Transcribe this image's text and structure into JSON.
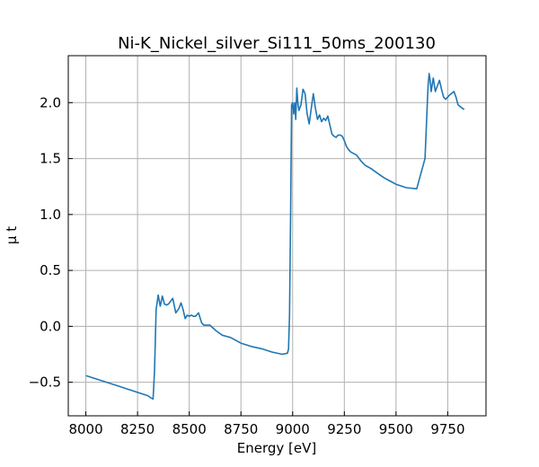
{
  "chart_data": {
    "type": "line",
    "title": "Ni-K_Nickel_silver_Si111_50ms_200130",
    "xlabel": "Energy [eV]",
    "ylabel": "μ t",
    "xlim": [
      7915,
      9935
    ],
    "ylim": [
      -0.8,
      2.42
    ],
    "grid": true,
    "legend": "none",
    "xticks": [
      8000,
      8250,
      8500,
      8750,
      9000,
      9250,
      9500,
      9750
    ],
    "xtick_labels": [
      "8000",
      "8250",
      "8500",
      "8750",
      "9000",
      "9250",
      "9500",
      "9750"
    ],
    "yticks": [
      -0.5,
      0.0,
      0.5,
      1.0,
      1.5,
      2.0
    ],
    "ytick_labels": [
      "−0.5",
      "0.0",
      "0.5",
      "1.0",
      "1.5",
      "2.0"
    ],
    "series": [
      {
        "color": "#1f77b4",
        "x": [
          8000,
          8100,
          8200,
          8300,
          8315,
          8325,
          8332,
          8340,
          8350,
          8360,
          8370,
          8380,
          8390,
          8400,
          8420,
          8435,
          8450,
          8460,
          8470,
          8480,
          8490,
          8500,
          8510,
          8520,
          8530,
          8545,
          8560,
          8570,
          8580,
          8600,
          8630,
          8660,
          8700,
          8750,
          8800,
          8850,
          8900,
          8950,
          8975,
          8980,
          8985,
          8990,
          8995,
          9000,
          9005,
          9010,
          9015,
          9020,
          9025,
          9030,
          9040,
          9050,
          9060,
          9070,
          9080,
          9090,
          9100,
          9110,
          9120,
          9130,
          9140,
          9150,
          9160,
          9170,
          9180,
          9190,
          9200,
          9210,
          9220,
          9230,
          9240,
          9250,
          9260,
          9270,
          9280,
          9290,
          9310,
          9330,
          9350,
          9380,
          9410,
          9440,
          9470,
          9500,
          9550,
          9600,
          9640,
          9655,
          9660,
          9665,
          9670,
          9680,
          9690,
          9700,
          9710,
          9720,
          9730,
          9740,
          9760,
          9780,
          9790,
          9800,
          9820,
          9830
        ],
        "values": [
          -0.44,
          -0.5,
          -0.56,
          -0.62,
          -0.64,
          -0.65,
          -0.4,
          0.15,
          0.28,
          0.18,
          0.27,
          0.2,
          0.19,
          0.2,
          0.25,
          0.12,
          0.16,
          0.21,
          0.15,
          0.07,
          0.1,
          0.09,
          0.1,
          0.09,
          0.09,
          0.12,
          0.03,
          0.01,
          0.01,
          0.01,
          -0.04,
          -0.08,
          -0.1,
          -0.15,
          -0.18,
          -0.2,
          -0.23,
          -0.25,
          -0.24,
          -0.2,
          0.1,
          1.0,
          1.98,
          2.0,
          1.9,
          2.0,
          1.85,
          2.13,
          2.0,
          1.93,
          1.98,
          2.12,
          2.08,
          1.9,
          1.81,
          1.95,
          2.08,
          1.95,
          1.85,
          1.89,
          1.83,
          1.86,
          1.84,
          1.88,
          1.8,
          1.72,
          1.7,
          1.69,
          1.71,
          1.71,
          1.7,
          1.66,
          1.61,
          1.58,
          1.56,
          1.55,
          1.53,
          1.48,
          1.44,
          1.41,
          1.37,
          1.33,
          1.3,
          1.27,
          1.24,
          1.23,
          1.5,
          2.15,
          2.26,
          2.2,
          2.1,
          2.22,
          2.1,
          2.15,
          2.2,
          2.12,
          2.05,
          2.03,
          2.07,
          2.1,
          2.05,
          1.98,
          1.95,
          1.94
        ]
      }
    ]
  }
}
